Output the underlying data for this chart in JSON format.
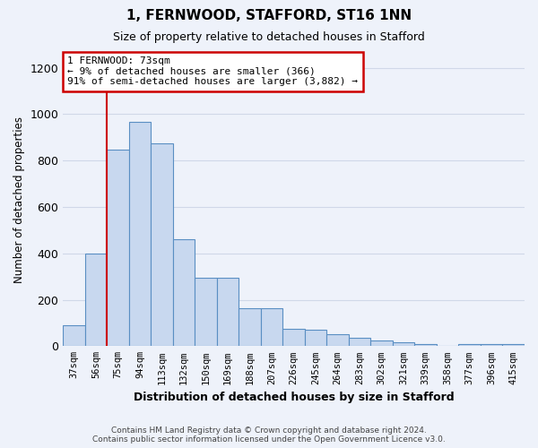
{
  "title": "1, FERNWOOD, STAFFORD, ST16 1NN",
  "subtitle": "Size of property relative to detached houses in Stafford",
  "xlabel": "Distribution of detached houses by size in Stafford",
  "ylabel": "Number of detached properties",
  "categories": [
    "37sqm",
    "56sqm",
    "75sqm",
    "94sqm",
    "113sqm",
    "132sqm",
    "150sqm",
    "169sqm",
    "188sqm",
    "207sqm",
    "226sqm",
    "245sqm",
    "264sqm",
    "283sqm",
    "302sqm",
    "321sqm",
    "339sqm",
    "358sqm",
    "377sqm",
    "396sqm",
    "415sqm"
  ],
  "values": [
    90,
    400,
    845,
    965,
    875,
    460,
    295,
    295,
    165,
    165,
    75,
    70,
    50,
    35,
    25,
    18,
    10,
    3,
    10,
    8,
    10
  ],
  "bar_color": "#c8d8ef",
  "bar_edge_color": "#5a8fc3",
  "annotation_text_line1": "1 FERNWOOD: 73sqm",
  "annotation_text_line2": "← 9% of detached houses are smaller (366)",
  "annotation_text_line3": "91% of semi-detached houses are larger (3,882) →",
  "vline_x_index": 2,
  "ylim": [
    0,
    1260
  ],
  "yticks": [
    0,
    200,
    400,
    600,
    800,
    1000,
    1200
  ],
  "footer_line1": "Contains HM Land Registry data © Crown copyright and database right 2024.",
  "footer_line2": "Contains public sector information licensed under the Open Government Licence v3.0.",
  "background_color": "#eef2fa",
  "plot_bg_color": "#eef2fa",
  "grid_color": "#d0d8e8",
  "annotation_box_color": "#ffffff",
  "annotation_box_edge": "#cc0000",
  "vline_color": "#cc0000"
}
